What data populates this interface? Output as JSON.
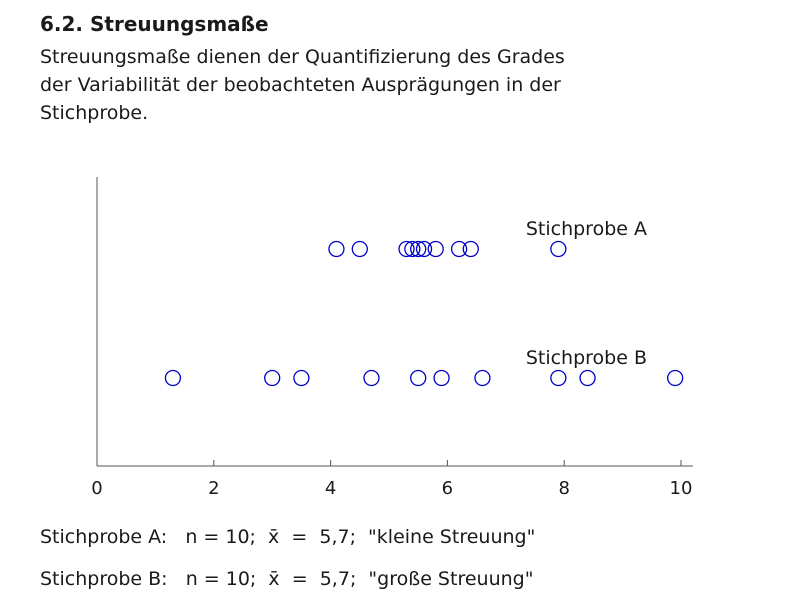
{
  "header": {
    "title": "6.2. Streuungsmaße",
    "intro_lines": [
      "Streuungsmaße dienen der Quantifizierung des Grades",
      "der Variabilität der beobachteten Ausprägungen in der",
      "Stichprobe."
    ]
  },
  "chart_data": {
    "type": "scatter",
    "xlim": [
      0,
      10
    ],
    "xticks": [
      "0",
      "2",
      "4",
      "6",
      "8",
      "10"
    ],
    "grid": false,
    "marker_color": "#0000cc",
    "series": [
      {
        "name": "Stichprobe A",
        "values": [
          4.1,
          4.5,
          5.3,
          5.4,
          5.5,
          5.6,
          5.8,
          6.2,
          6.4,
          7.9
        ]
      },
      {
        "name": "Stichprobe B",
        "values": [
          1.3,
          3.0,
          3.5,
          4.7,
          5.5,
          5.9,
          6.6,
          7.9,
          8.4,
          9.9
        ]
      }
    ]
  },
  "summary": {
    "line_a": "Stichprobe A:   n = 10;  x̄  =  5,7;  \"kleine Streuung\"",
    "line_b": "Stichprobe B:   n = 10;  x̄  =  5,7;  \"große Streuung\""
  }
}
